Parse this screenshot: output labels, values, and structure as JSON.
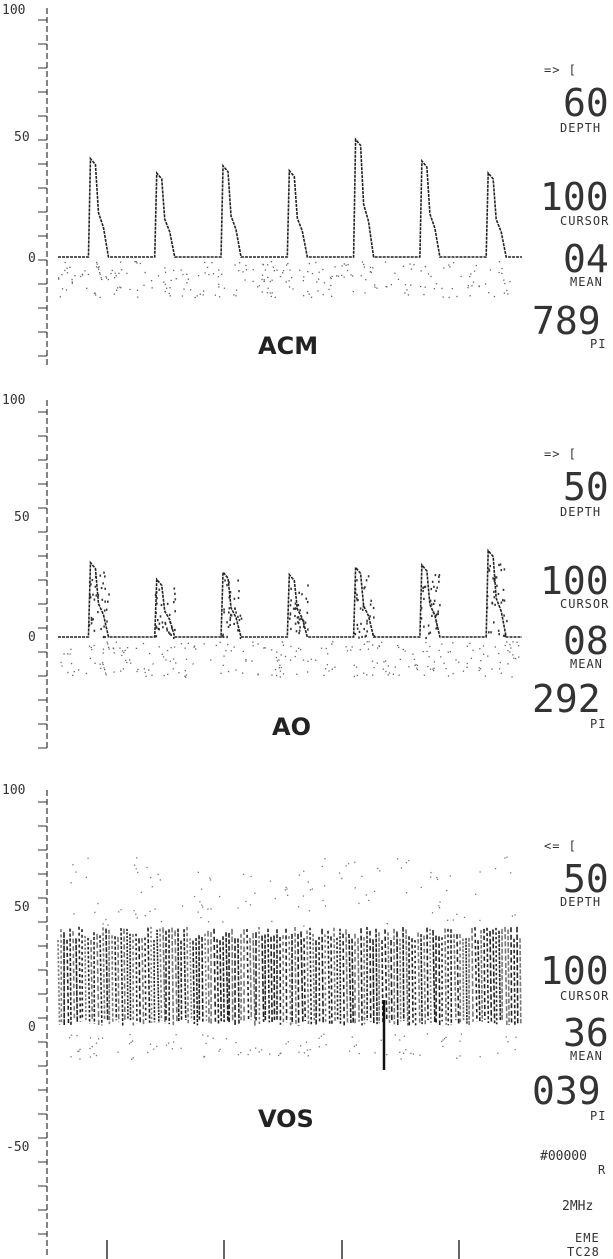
{
  "chart_data": [
    {
      "type": "line",
      "title": "ACM",
      "xlabel": "",
      "ylabel": "",
      "ylim": [
        -50,
        100
      ],
      "y_ticks": [
        "100",
        "50",
        "0"
      ],
      "peaks": [
        41,
        35,
        38,
        36,
        49,
        40,
        35
      ],
      "baseline": 0,
      "readout": {
        "direction": "=> [",
        "depth_value": "60",
        "depth_label": "DEPTH",
        "cursor_value": "100",
        "cursor_label": "CURSOR",
        "mean_value": "04",
        "mean_label": "MEAN",
        "pi_value": "789",
        "pi_label": "PI"
      }
    },
    {
      "type": "line",
      "title": "AO",
      "xlabel": "",
      "ylabel": "",
      "ylim": [
        -50,
        100
      ],
      "y_ticks": [
        "100",
        "50",
        "0"
      ],
      "peaks": [
        31,
        24,
        27,
        26,
        29,
        30,
        36
      ],
      "baseline": 0,
      "readout": {
        "direction": "=> [",
        "depth_value": "50",
        "depth_label": "DEPTH",
        "cursor_value": "100",
        "cursor_label": "CURSOR",
        "mean_value": "08",
        "mean_label": "MEAN",
        "pi_value": "292",
        "pi_label": "PI"
      }
    },
    {
      "type": "area",
      "title": "VOS",
      "xlabel": "",
      "ylabel": "",
      "ylim": [
        -50,
        100
      ],
      "y_ticks": [
        "100",
        "50",
        "0",
        "-50"
      ],
      "band_low": 3,
      "band_high": 40,
      "baseline": 0,
      "readout": {
        "direction": "<= [",
        "depth_value": "50",
        "depth_label": "DEPTH",
        "cursor_value": "100",
        "cursor_label": "CURSOR",
        "mean_value": "36",
        "mean_label": "MEAN",
        "pi_value": "039",
        "pi_label": "PI",
        "extra": [
          "#00000",
          "R",
          "2MHz",
          "EME",
          "TC28"
        ]
      }
    }
  ]
}
